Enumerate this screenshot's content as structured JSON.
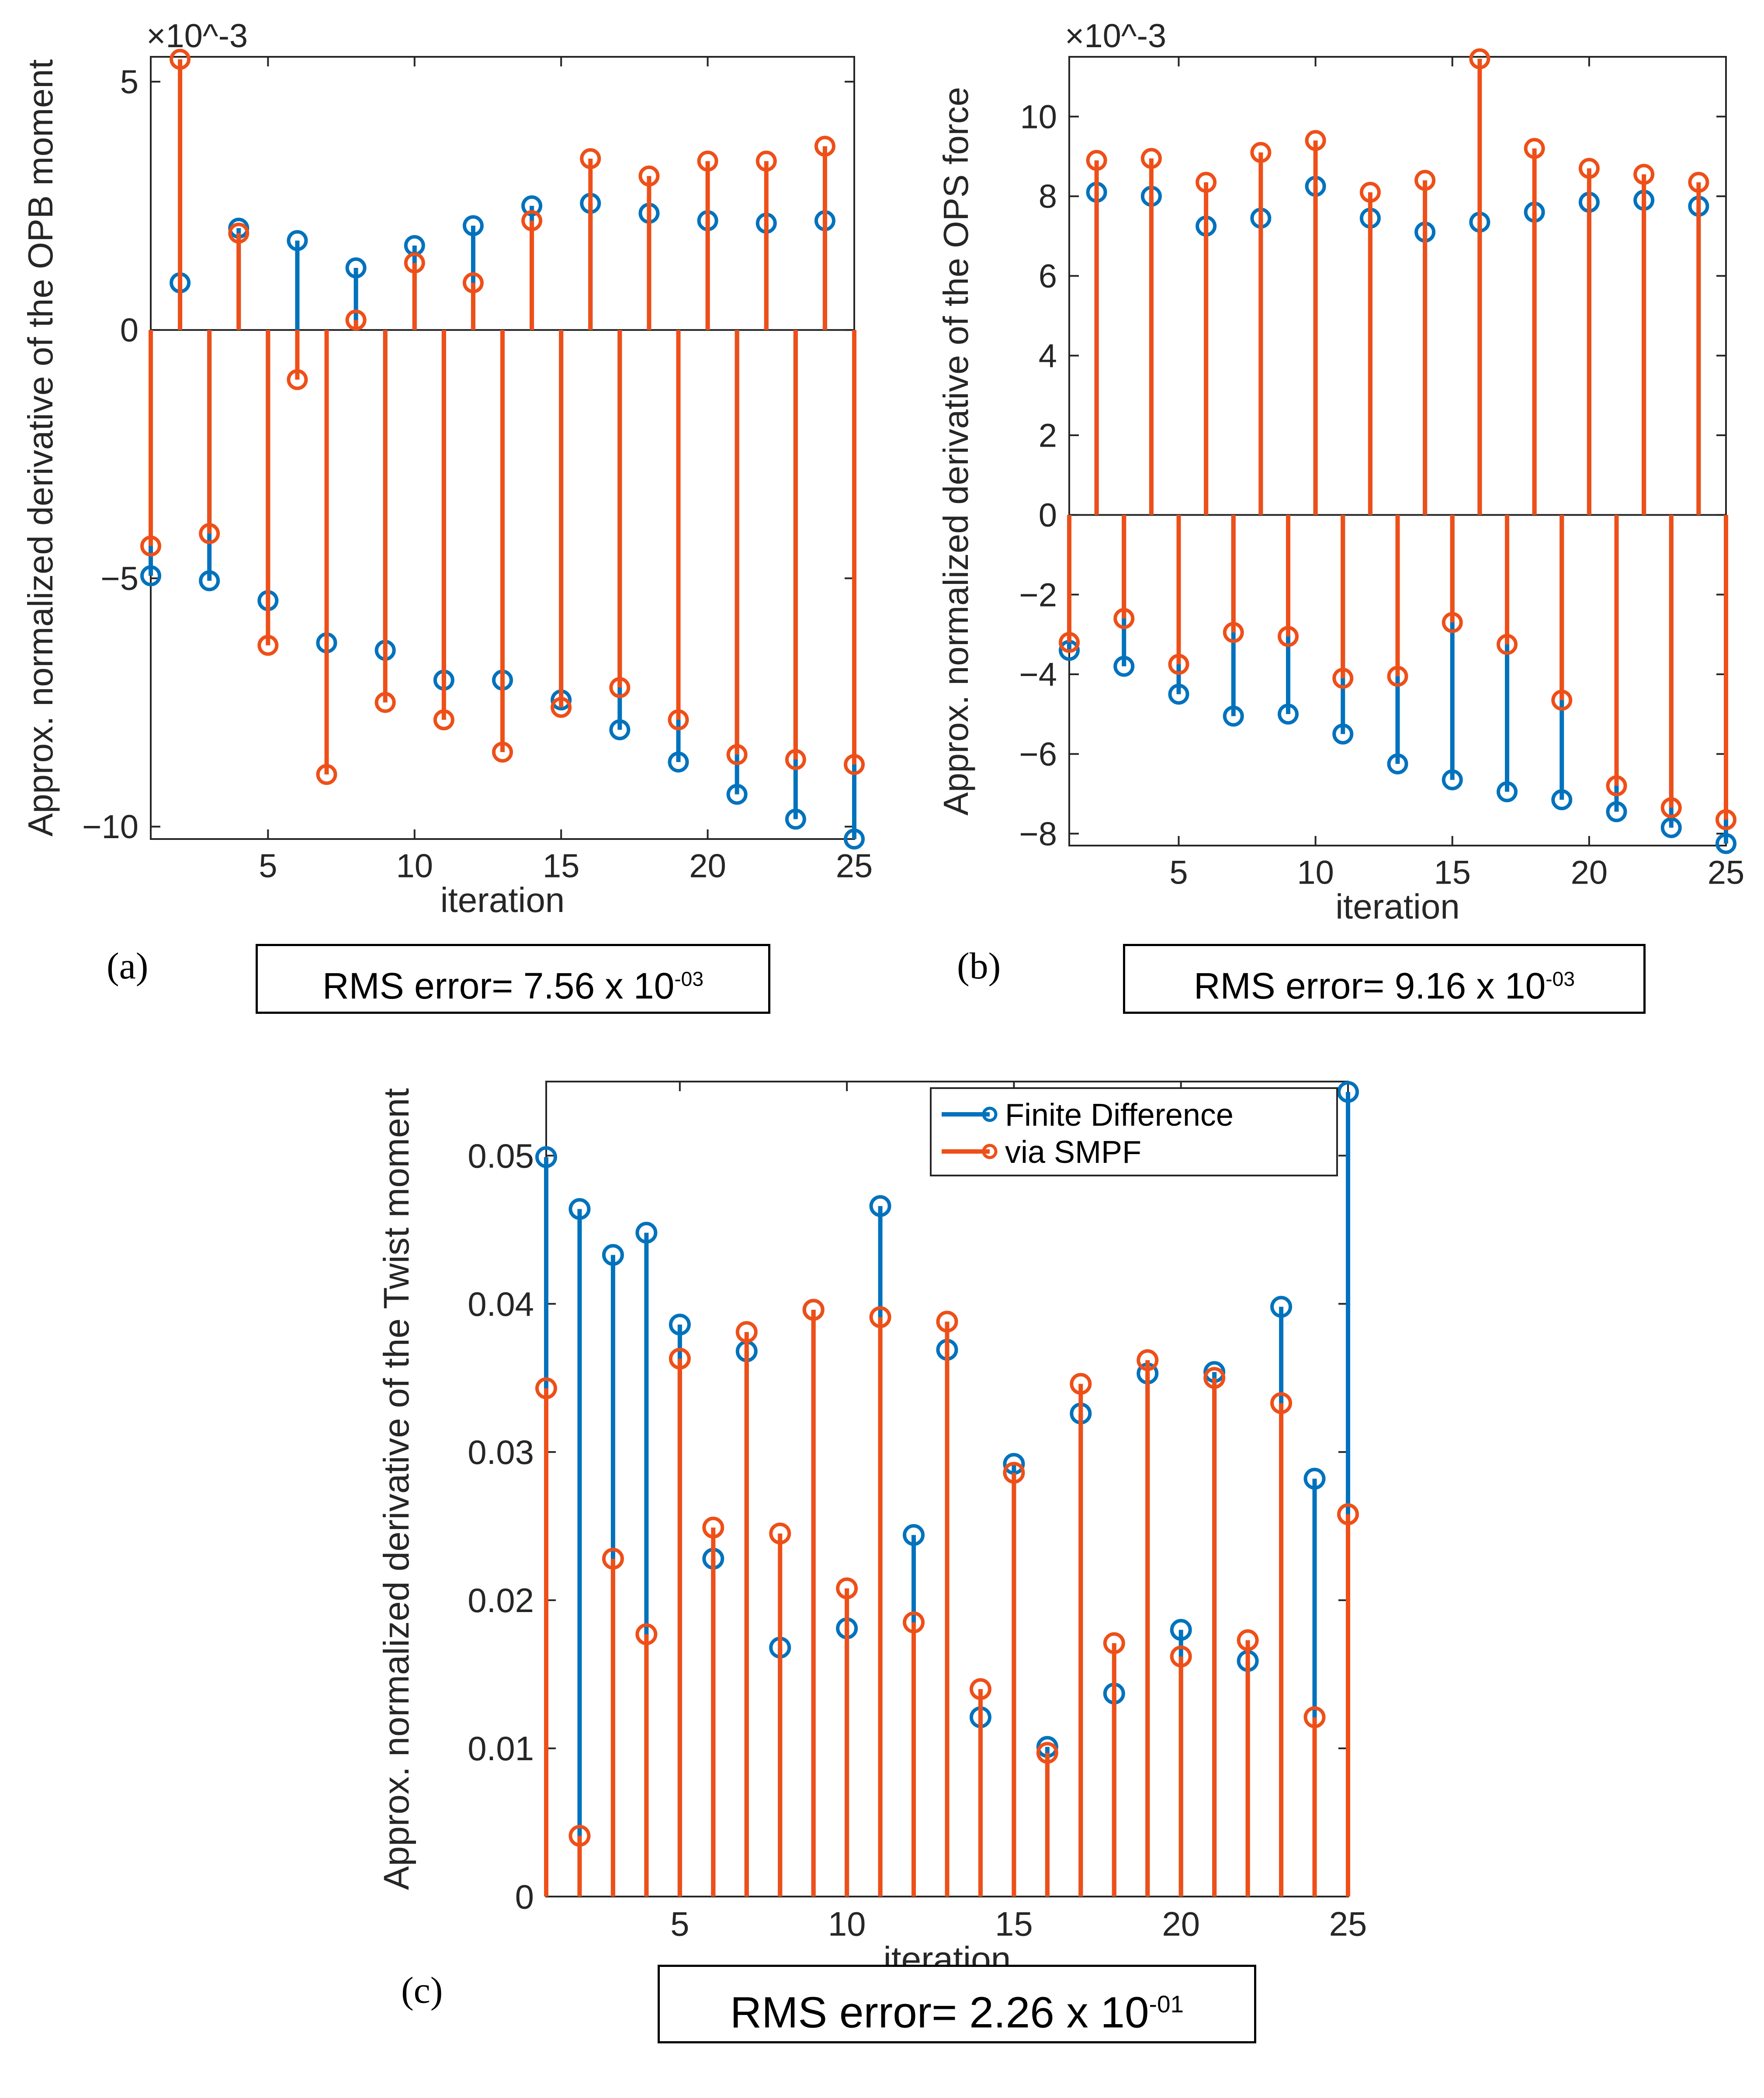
{
  "colors": {
    "finite_difference": "#0072BD",
    "smpf": "#EE4F18",
    "axis": "#000000"
  },
  "legend": {
    "items": [
      "Finite Difference",
      "via SMPF"
    ]
  },
  "panels": [
    {
      "label": "(a)",
      "rms": {
        "prefix": "RMS error= 7.56 x 10",
        "exp": "-03"
      }
    },
    {
      "label": "(b)",
      "rms": {
        "prefix": "RMS error= 9.16 x 10",
        "exp": "-03"
      }
    },
    {
      "label": "(c)",
      "rms": {
        "prefix": "RMS error= 2.26 x 10",
        "exp": "-01"
      }
    }
  ],
  "chart_data": [
    {
      "type": "stem",
      "title": "",
      "xlabel": "iteration",
      "ylabel": "Approx. normalized derivative of the OPB moment",
      "exponent_label": "×10^-3",
      "xlim": [
        1,
        25
      ],
      "ylim": [
        -10.25,
        5.5
      ],
      "xticks": [
        5,
        10,
        15,
        20,
        25
      ],
      "yticks": [
        -10,
        -5,
        0,
        5
      ],
      "ytick_labels": [
        "−10",
        "−5",
        "0",
        "5"
      ],
      "series": [
        {
          "name": "Finite Difference",
          "x": [
            1,
            2,
            3,
            4,
            5,
            6,
            7,
            8,
            9,
            10,
            11,
            12,
            13,
            14,
            15,
            16,
            17,
            18,
            19,
            20,
            21,
            22,
            23,
            24,
            25
          ],
          "values": [
            -4.95,
            0.95,
            -5.05,
            2.05,
            -5.45,
            1.8,
            -6.3,
            1.25,
            -6.45,
            1.7,
            -7.05,
            2.1,
            -7.05,
            2.5,
            -7.45,
            2.55,
            -8.05,
            2.35,
            -8.7,
            2.2,
            -9.35,
            2.15,
            -9.85,
            2.2,
            -10.25
          ]
        },
        {
          "name": "via SMPF",
          "x": [
            1,
            2,
            3,
            4,
            5,
            6,
            7,
            8,
            9,
            10,
            11,
            12,
            13,
            14,
            15,
            16,
            17,
            18,
            19,
            20,
            21,
            22,
            23,
            24,
            25
          ],
          "values": [
            -4.35,
            5.45,
            -4.1,
            1.95,
            -6.35,
            -1.0,
            -8.95,
            0.2,
            -7.5,
            1.35,
            -7.85,
            0.95,
            -8.5,
            2.2,
            -7.6,
            3.45,
            -7.2,
            3.1,
            -7.85,
            3.4,
            -8.55,
            3.4,
            -8.65,
            3.7,
            -8.75
          ]
        }
      ]
    },
    {
      "type": "stem",
      "title": "",
      "xlabel": "iteration",
      "ylabel": "Approx. normalized derivative of the OPS force",
      "exponent_label": "×10^-3",
      "xlim": [
        1,
        25
      ],
      "ylim": [
        -8.3,
        11.5
      ],
      "xticks": [
        5,
        10,
        15,
        20,
        25
      ],
      "yticks": [
        -8,
        -6,
        -4,
        -2,
        0,
        2,
        4,
        6,
        8,
        10
      ],
      "ytick_labels": [
        "−8",
        "−6",
        "−4",
        "−2",
        "0",
        "2",
        "4",
        "6",
        "8",
        "10"
      ],
      "series": [
        {
          "name": "Finite Difference",
          "x": [
            1,
            2,
            3,
            4,
            5,
            6,
            7,
            8,
            9,
            10,
            11,
            12,
            13,
            14,
            15,
            16,
            17,
            18,
            19,
            20,
            21,
            22,
            23,
            24,
            25
          ],
          "values": [
            -3.4,
            8.1,
            -3.8,
            8.0,
            -4.5,
            7.25,
            -5.05,
            7.45,
            -5.0,
            8.25,
            -5.5,
            7.45,
            -6.25,
            7.1,
            -6.65,
            7.35,
            -6.95,
            7.6,
            -7.15,
            7.85,
            -7.45,
            7.9,
            -7.85,
            7.75,
            -8.25
          ]
        },
        {
          "name": "via SMPF",
          "x": [
            1,
            2,
            3,
            4,
            5,
            6,
            7,
            8,
            9,
            10,
            11,
            12,
            13,
            14,
            15,
            16,
            17,
            18,
            19,
            20,
            21,
            22,
            23,
            24,
            25
          ],
          "values": [
            -3.2,
            8.9,
            -2.6,
            8.95,
            -3.75,
            8.35,
            -2.95,
            9.1,
            -3.05,
            9.4,
            -4.1,
            8.1,
            -4.05,
            8.4,
            -2.7,
            11.45,
            -3.25,
            9.2,
            -4.65,
            8.7,
            -6.8,
            8.55,
            -7.35,
            8.35,
            -7.65
          ]
        }
      ]
    },
    {
      "type": "stem",
      "title": "",
      "xlabel": "iteration",
      "ylabel": "Approx. normalized derivative of the Twist moment",
      "xlim": [
        1,
        25
      ],
      "ylim": [
        0,
        0.055
      ],
      "xticks": [
        5,
        10,
        15,
        20,
        25
      ],
      "yticks": [
        0,
        0.01,
        0.02,
        0.03,
        0.04,
        0.05
      ],
      "ytick_labels": [
        "0",
        "0.01",
        "0.02",
        "0.03",
        "0.04",
        "0.05"
      ],
      "legend": {
        "position": "top-right"
      },
      "series": [
        {
          "name": "Finite Difference",
          "x": [
            1,
            2,
            3,
            4,
            5,
            6,
            7,
            8,
            9,
            10,
            11,
            12,
            13,
            14,
            15,
            16,
            17,
            18,
            19,
            20,
            21,
            22,
            23,
            24,
            25
          ],
          "values": [
            0.0499,
            0.0464,
            0.0433,
            0.0448,
            0.0386,
            0.0228,
            0.0368,
            0.0168,
            0.0396,
            0.0181,
            0.0466,
            0.0244,
            0.0369,
            0.0121,
            0.0292,
            0.0101,
            0.0326,
            0.0137,
            0.0353,
            0.018,
            0.0354,
            0.0159,
            0.0398,
            0.0282,
            0.0543
          ]
        },
        {
          "name": "via SMPF",
          "x": [
            1,
            2,
            3,
            4,
            5,
            6,
            7,
            8,
            9,
            10,
            11,
            12,
            13,
            14,
            15,
            16,
            17,
            18,
            19,
            20,
            21,
            22,
            23,
            24,
            25
          ],
          "values": [
            0.0343,
            0.0041,
            0.0228,
            0.0177,
            0.0363,
            0.0249,
            0.0381,
            0.0245,
            0.0396,
            0.0208,
            0.0391,
            0.0185,
            0.0388,
            0.014,
            0.0286,
            0.0097,
            0.0346,
            0.0171,
            0.0362,
            0.0162,
            0.035,
            0.0173,
            0.0333,
            0.0121,
            0.0258
          ]
        }
      ]
    }
  ]
}
